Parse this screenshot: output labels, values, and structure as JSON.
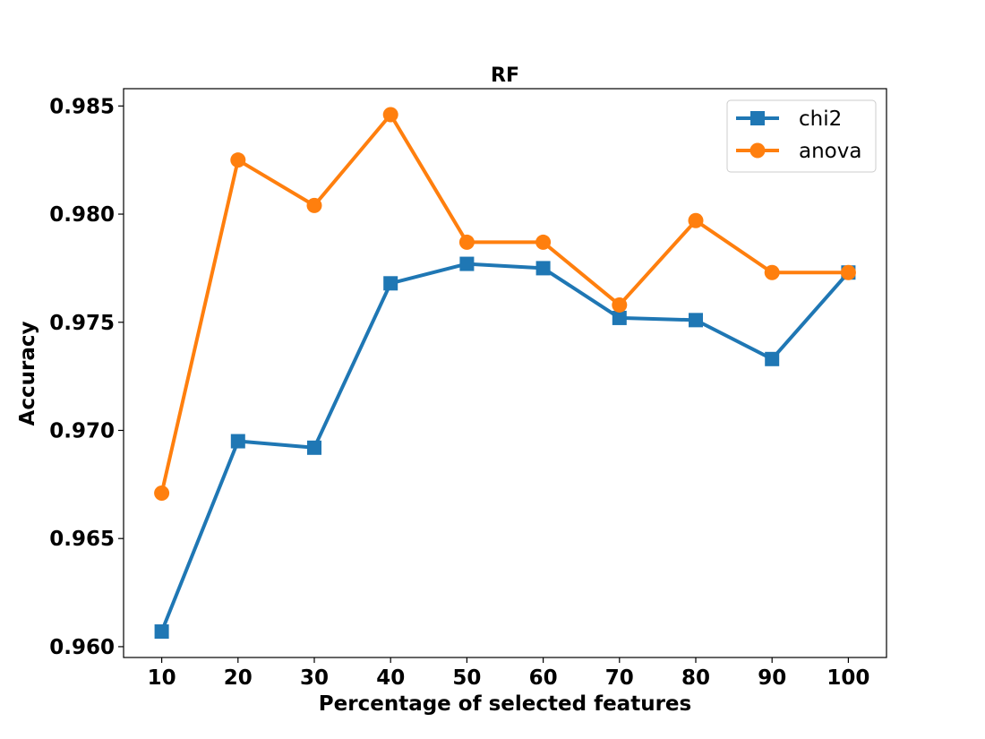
{
  "chart_data": {
    "type": "line",
    "title": "RF",
    "xlabel": "Percentage of selected features",
    "ylabel": "Accuracy",
    "x": [
      10,
      20,
      30,
      40,
      50,
      60,
      70,
      80,
      90,
      100
    ],
    "xticks": [
      "10",
      "20",
      "30",
      "40",
      "50",
      "60",
      "70",
      "80",
      "90",
      "100"
    ],
    "yticks": [
      "0.960",
      "0.965",
      "0.970",
      "0.975",
      "0.980",
      "0.985"
    ],
    "ytick_values": [
      0.96,
      0.965,
      0.97,
      0.975,
      0.98,
      0.985
    ],
    "xlim": [
      5,
      105
    ],
    "ylim": [
      0.9595,
      0.9858
    ],
    "grid": false,
    "legend_position": "top-right",
    "series": [
      {
        "name": "chi2",
        "color": "#1f77b4",
        "marker": "square",
        "values": [
          0.9607,
          0.9695,
          0.9692,
          0.9768,
          0.9777,
          0.9775,
          0.9752,
          0.9751,
          0.9733,
          0.9773
        ]
      },
      {
        "name": "anova",
        "color": "#ff7f0e",
        "marker": "circle",
        "values": [
          0.9671,
          0.9825,
          0.9804,
          0.9846,
          0.9787,
          0.9787,
          0.9758,
          0.9797,
          0.9773,
          0.9773
        ]
      }
    ]
  }
}
